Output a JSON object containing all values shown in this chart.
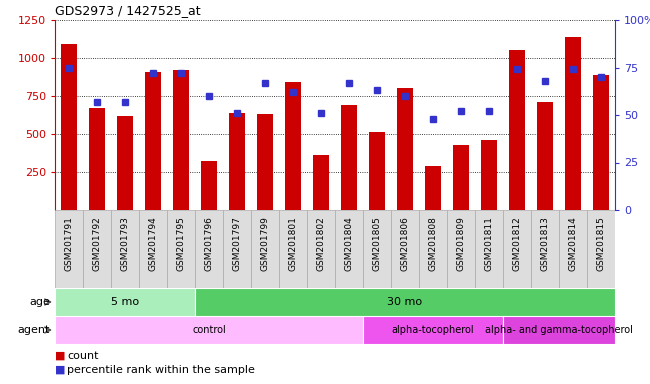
{
  "title": "GDS2973 / 1427525_at",
  "samples": [
    "GSM201791",
    "GSM201792",
    "GSM201793",
    "GSM201794",
    "GSM201795",
    "GSM201796",
    "GSM201797",
    "GSM201799",
    "GSM201801",
    "GSM201802",
    "GSM201804",
    "GSM201805",
    "GSM201806",
    "GSM201808",
    "GSM201809",
    "GSM201811",
    "GSM201812",
    "GSM201813",
    "GSM201814",
    "GSM201815"
  ],
  "counts": [
    1090,
    670,
    620,
    910,
    920,
    320,
    640,
    630,
    840,
    360,
    690,
    510,
    800,
    290,
    430,
    460,
    1050,
    710,
    1140,
    890
  ],
  "percentiles": [
    75,
    57,
    57,
    72,
    72,
    60,
    51,
    67,
    62,
    51,
    67,
    63,
    60,
    48,
    52,
    52,
    74,
    68,
    74,
    70
  ],
  "bar_color": "#cc0000",
  "dot_color": "#3333cc",
  "ylim_left": [
    0,
    1250
  ],
  "ylim_right": [
    0,
    100
  ],
  "yticks_left": [
    250,
    500,
    750,
    1000,
    1250
  ],
  "yticks_right": [
    0,
    25,
    50,
    75,
    100
  ],
  "age_groups": [
    {
      "label": "5 mo",
      "start": 0,
      "end": 5,
      "color": "#aaeebb"
    },
    {
      "label": "30 mo",
      "start": 5,
      "end": 20,
      "color": "#55cc66"
    }
  ],
  "agent_groups": [
    {
      "label": "control",
      "start": 0,
      "end": 11,
      "color": "#ffbbff"
    },
    {
      "label": "alpha-tocopherol",
      "start": 11,
      "end": 16,
      "color": "#ee55ee"
    },
    {
      "label": "alpha- and gamma-tocopherol",
      "start": 16,
      "end": 20,
      "color": "#dd44dd"
    }
  ],
  "legend_count_label": "count",
  "legend_pct_label": "percentile rank within the sample",
  "background_color": "#ffffff",
  "plot_bg_color": "#ffffff",
  "axis_color_left": "#cc0000",
  "axis_color_right": "#3333cc",
  "xtick_bg": "#dddddd",
  "xtick_border": "#aaaaaa"
}
